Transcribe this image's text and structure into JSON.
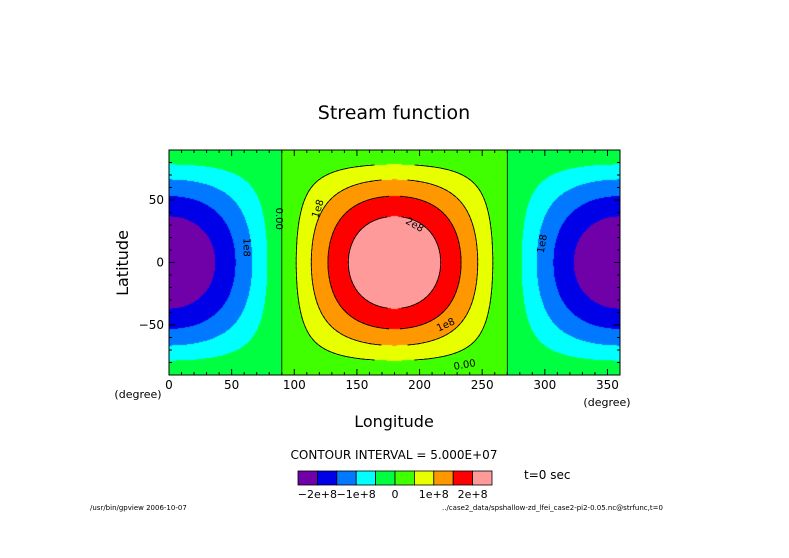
{
  "chart_data": {
    "type": "contour",
    "title": "Stream function",
    "xlabel": "Longitude",
    "ylabel": "Latitude",
    "x_unit": "(degree)",
    "y_unit": "(degree)",
    "xlim": [
      0,
      360
    ],
    "ylim": [
      -90,
      90
    ],
    "x_ticks": [
      0,
      50,
      100,
      150,
      200,
      250,
      300,
      350
    ],
    "y_ticks": [
      -50,
      0,
      50
    ],
    "field": "psi = -2.5e8 * cos(lon) * cos(lat)",
    "contour_interval_text": "CONTOUR INTERVAL = 5.000E+07",
    "contour_interval": 50000000,
    "levels": [
      -250000000,
      -200000000,
      -150000000,
      -100000000,
      -50000000,
      0,
      50000000,
      100000000,
      150000000,
      200000000,
      250000000
    ],
    "band_colors": [
      "#7000a8",
      "#0000e8",
      "#0078ff",
      "#00ffff",
      "#00ff40",
      "#40ff00",
      "#e8ff00",
      "#ff9800",
      "#ff0000",
      "#ff9a9a"
    ],
    "colorbar_labels": [
      {
        "text": "−2e+8",
        "at": -200000000
      },
      {
        "text": "−1e+8",
        "at": -100000000
      },
      {
        "text": "0",
        "at": 0
      },
      {
        "text": "1e+8",
        "at": 100000000
      },
      {
        "text": "2e+8",
        "at": 200000000
      }
    ],
    "contour_labels": [
      {
        "text": "0.00",
        "lon": 88,
        "lat": 35,
        "rot": 90
      },
      {
        "text": "1e8",
        "lon": 119,
        "lat": 43,
        "rot": -72
      },
      {
        "text": "2e8",
        "lon": 196,
        "lat": 30,
        "rot": 30
      },
      {
        "text": "1e8",
        "lon": 62,
        "lat": 12,
        "rot": 90
      },
      {
        "text": "1e8",
        "lon": 221,
        "lat": -50,
        "rot": -25
      },
      {
        "text": "0.00",
        "lon": 236,
        "lat": -82,
        "rot": -10
      },
      {
        "text": "1e8",
        "lon": 298,
        "lat": 15,
        "rot": -80
      }
    ],
    "time_label": "t=0 sec"
  },
  "footer": {
    "left": "/usr/bin/gpview  2006-10-07",
    "right": "../case2_data/spshallow-zd_lfei_case2-pi2-0.05.nc@strfunc,t=0"
  }
}
